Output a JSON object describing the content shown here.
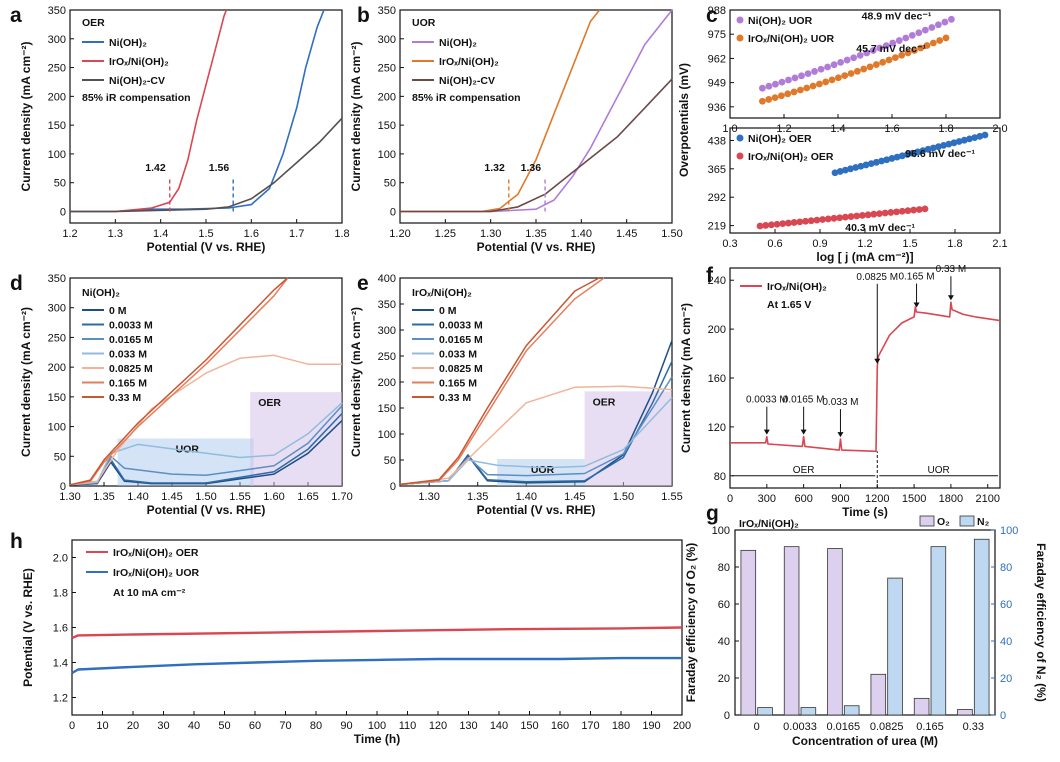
{
  "figure_size": "1060x762",
  "panel_labels": [
    "a",
    "b",
    "c",
    "d",
    "e",
    "f",
    "g",
    "h"
  ],
  "chart_data": [
    {
      "panel": "a",
      "type": "line",
      "xlabel": "Potential (V vs. RHE)",
      "ylabel": "Current density (mA cm⁻²)",
      "xlim": [
        1.2,
        1.8
      ],
      "ylim": [
        -20,
        350
      ],
      "xticks": [
        "1.2",
        "1.3",
        "1.4",
        "1.5",
        "1.6",
        "1.7",
        "1.8"
      ],
      "yticks": [
        "0",
        "50",
        "100",
        "150",
        "200",
        "250",
        "300",
        "350"
      ],
      "header": "OER",
      "note": "85% iR compensation",
      "markers": [
        {
          "x": 1.42,
          "label": "1.42",
          "color": "#d94752"
        },
        {
          "x": 1.56,
          "label": "1.56",
          "color": "#2f6fbf"
        }
      ],
      "series": [
        {
          "name": "Ni(OH)₂",
          "color": "#2f6fbf",
          "x": [
            1.2,
            1.3,
            1.38,
            1.45,
            1.55,
            1.6,
            1.64,
            1.67,
            1.7,
            1.72,
            1.745,
            1.76
          ],
          "y": [
            0,
            0,
            4,
            4,
            6,
            12,
            40,
            100,
            180,
            250,
            320,
            350
          ]
        },
        {
          "name": "IrOₓ/Ni(OH)₂",
          "color": "#d94752",
          "x": [
            1.2,
            1.3,
            1.38,
            1.42,
            1.44,
            1.46,
            1.48,
            1.5,
            1.52,
            1.54,
            1.545
          ],
          "y": [
            0,
            0,
            6,
            16,
            40,
            90,
            160,
            220,
            280,
            340,
            350
          ]
        },
        {
          "name": "Ni(OH)₂-CV",
          "color": "#55504e",
          "x": [
            1.2,
            1.3,
            1.4,
            1.5,
            1.55,
            1.6,
            1.65,
            1.7,
            1.75,
            1.8
          ],
          "y": [
            0,
            0,
            2,
            4,
            8,
            22,
            50,
            85,
            120,
            162
          ]
        }
      ]
    },
    {
      "panel": "b",
      "type": "line",
      "xlabel": "Potential (V vs. RHE)",
      "ylabel": "Current density (mA cm⁻²)",
      "xlim": [
        1.2,
        1.5
      ],
      "ylim": [
        -20,
        350
      ],
      "xticks": [
        "1.20",
        "1.25",
        "1.30",
        "1.35",
        "1.40",
        "1.45",
        "1.50"
      ],
      "yticks": [
        "0",
        "50",
        "100",
        "150",
        "200",
        "250",
        "300",
        "350"
      ],
      "header": "UOR",
      "note": "85% iR compensation",
      "markers": [
        {
          "x": 1.32,
          "label": "1.32",
          "color": "#e0792a"
        },
        {
          "x": 1.36,
          "label": "1.36",
          "color": "#b07cd8"
        }
      ],
      "series": [
        {
          "name": "Ni(OH)₂",
          "color": "#b07cd8",
          "x": [
            1.2,
            1.3,
            1.35,
            1.37,
            1.39,
            1.41,
            1.43,
            1.45,
            1.47,
            1.5
          ],
          "y": [
            0,
            0,
            4,
            20,
            60,
            110,
            170,
            230,
            290,
            350
          ]
        },
        {
          "name": "IrOₓ/Ni(OH)₂",
          "color": "#e0792a",
          "x": [
            1.2,
            1.29,
            1.31,
            1.33,
            1.35,
            1.37,
            1.39,
            1.41,
            1.42
          ],
          "y": [
            0,
            0,
            5,
            30,
            90,
            170,
            250,
            330,
            350
          ]
        },
        {
          "name": "Ni(OH)₂-CV",
          "color": "#6b4a45",
          "x": [
            1.2,
            1.3,
            1.33,
            1.36,
            1.4,
            1.44,
            1.47,
            1.5
          ],
          "y": [
            0,
            0,
            8,
            30,
            80,
            130,
            180,
            230
          ]
        }
      ]
    },
    {
      "panel": "c-top",
      "type": "scatter",
      "ylabel": "Overpotentials (mV)",
      "xlim": [
        1.0,
        2.0
      ],
      "ylim": [
        930,
        988
      ],
      "xticks": [
        "1.0",
        "1.2",
        "1.4",
        "1.6",
        "1.8",
        "2.0"
      ],
      "yticks": [
        "936",
        "949",
        "962",
        "975",
        "988"
      ],
      "series": [
        {
          "name": "Ni(OH)₂ UOR",
          "color": "#b07cd8",
          "slope_label": "48.9 mV dec⁻¹",
          "x": [
            1.12,
            1.82
          ],
          "y": [
            946,
            983
          ]
        },
        {
          "name": "IrOₓ/Ni(OH)₂ UOR",
          "color": "#e0792a",
          "slope_label": "45.7 mV dec⁻¹",
          "x": [
            1.12,
            1.8
          ],
          "y": [
            939,
            973
          ]
        }
      ]
    },
    {
      "panel": "c-bottom",
      "type": "scatter",
      "xlabel": "log [ j (mA cm⁻²)]",
      "ylabel": "Overpotentials (mV)",
      "xlim": [
        0.3,
        2.1
      ],
      "ylim": [
        200,
        470
      ],
      "xticks": [
        "0.3",
        "0.6",
        "0.9",
        "1.2",
        "1.5",
        "1.8",
        "2.1"
      ],
      "yticks": [
        "219",
        "292",
        "365",
        "438"
      ],
      "series": [
        {
          "name": "Ni(OH)₂ OER",
          "color": "#2f6fbf",
          "slope_label": "96.6 mV dec⁻¹",
          "x": [
            1.0,
            2.0
          ],
          "y": [
            355,
            452
          ]
        },
        {
          "name": "IrOₓ/Ni(OH)₂ OER",
          "color": "#d94752",
          "slope_label": "40.3 mV dec⁻¹",
          "x": [
            0.5,
            1.6
          ],
          "y": [
            218,
            262
          ]
        }
      ]
    },
    {
      "panel": "d",
      "type": "line",
      "xlabel": "Potential (V vs. RHE)",
      "ylabel": "Current density (mA cm⁻²)",
      "xlim": [
        1.3,
        1.7
      ],
      "ylim": [
        0,
        350
      ],
      "xticks": [
        "1.30",
        "1.35",
        "1.40",
        "1.45",
        "1.50",
        "1.55",
        "1.60",
        "1.65",
        "1.70"
      ],
      "yticks": [
        "0",
        "50",
        "100",
        "150",
        "200",
        "250",
        "300",
        "350"
      ],
      "header": "Ni(OH)₂",
      "regions": [
        {
          "label": "UOR",
          "x0": 1.37,
          "x1": 1.57,
          "y1": 80
        },
        {
          "label": "OER",
          "x0": 1.565,
          "x1": 1.7,
          "y1": 158
        }
      ],
      "series": [
        {
          "name": "0 M",
          "color": "#1d4f86",
          "x": [
            1.3,
            1.34,
            1.36,
            1.38,
            1.42,
            1.5,
            1.6,
            1.65,
            1.7
          ],
          "y": [
            2,
            4,
            40,
            8,
            4,
            4,
            20,
            55,
            110
          ]
        },
        {
          "name": "0.0033 M",
          "color": "#2c6aa8",
          "x": [
            1.3,
            1.34,
            1.36,
            1.38,
            1.42,
            1.5,
            1.6,
            1.65,
            1.7
          ],
          "y": [
            2,
            4,
            45,
            10,
            5,
            5,
            24,
            62,
            122
          ]
        },
        {
          "name": "0.0165 M",
          "color": "#5a8fc4",
          "x": [
            1.3,
            1.34,
            1.36,
            1.38,
            1.45,
            1.5,
            1.6,
            1.65,
            1.7
          ],
          "y": [
            2,
            6,
            50,
            30,
            20,
            18,
            34,
            72,
            135
          ]
        },
        {
          "name": "0.033 M",
          "color": "#93bbdc",
          "x": [
            1.3,
            1.34,
            1.36,
            1.4,
            1.48,
            1.55,
            1.6,
            1.65,
            1.7
          ],
          "y": [
            2,
            6,
            55,
            70,
            58,
            48,
            52,
            88,
            140
          ]
        },
        {
          "name": "0.0825 M",
          "color": "#f0b49a",
          "x": [
            1.3,
            1.34,
            1.37,
            1.42,
            1.5,
            1.55,
            1.6,
            1.65,
            1.7
          ],
          "y": [
            2,
            8,
            60,
            130,
            190,
            215,
            220,
            205,
            205
          ]
        },
        {
          "name": "0.165 M",
          "color": "#e67e5c",
          "x": [
            1.3,
            1.33,
            1.35,
            1.4,
            1.5,
            1.6,
            1.62
          ],
          "y": [
            2,
            8,
            40,
            100,
            205,
            320,
            350
          ]
        },
        {
          "name": "0.33 M",
          "color": "#c9562f",
          "x": [
            1.3,
            1.33,
            1.35,
            1.4,
            1.5,
            1.6,
            1.62
          ],
          "y": [
            2,
            10,
            44,
            106,
            212,
            330,
            350
          ]
        }
      ]
    },
    {
      "panel": "e",
      "type": "line",
      "xlabel": "Potential (V vs. RHE)",
      "ylabel": "Current density (mA cm⁻²)",
      "xlim": [
        1.27,
        1.55
      ],
      "ylim": [
        0,
        400
      ],
      "xticks": [
        "1.30",
        "1.35",
        "1.40",
        "1.45",
        "1.50",
        "1.55"
      ],
      "yticks": [
        "0",
        "50",
        "100",
        "150",
        "200",
        "250",
        "300",
        "350",
        "400"
      ],
      "header": "IrOₓ/Ni(OH)₂",
      "regions": [
        {
          "label": "UOR",
          "x0": 1.37,
          "x1": 1.46,
          "y1": 52
        },
        {
          "label": "OER",
          "x0": 1.46,
          "x1": 1.55,
          "y1": 182
        }
      ],
      "series": [
        {
          "name": "0 M",
          "color": "#1d4f86",
          "x": [
            1.27,
            1.32,
            1.34,
            1.36,
            1.4,
            1.46,
            1.5,
            1.53,
            1.55
          ],
          "y": [
            3,
            10,
            58,
            10,
            6,
            8,
            60,
            180,
            280
          ]
        },
        {
          "name": "0.0033 M",
          "color": "#2c6aa8",
          "x": [
            1.27,
            1.32,
            1.34,
            1.36,
            1.4,
            1.46,
            1.5,
            1.53,
            1.55
          ],
          "y": [
            3,
            10,
            60,
            12,
            8,
            10,
            55,
            160,
            240
          ]
        },
        {
          "name": "0.0165 M",
          "color": "#5a8fc4",
          "x": [
            1.27,
            1.32,
            1.34,
            1.36,
            1.4,
            1.46,
            1.5,
            1.53,
            1.55
          ],
          "y": [
            3,
            10,
            55,
            22,
            20,
            24,
            62,
            150,
            210
          ]
        },
        {
          "name": "0.033 M",
          "color": "#93bbdc",
          "x": [
            1.27,
            1.32,
            1.34,
            1.37,
            1.42,
            1.46,
            1.5,
            1.53,
            1.55
          ],
          "y": [
            3,
            10,
            50,
            40,
            35,
            38,
            70,
            130,
            170
          ]
        },
        {
          "name": "0.0825 M",
          "color": "#f0b49a",
          "x": [
            1.27,
            1.32,
            1.35,
            1.4,
            1.45,
            1.5,
            1.55
          ],
          "y": [
            3,
            15,
            70,
            160,
            190,
            192,
            185
          ]
        },
        {
          "name": "0.165 M",
          "color": "#e67e5c",
          "x": [
            1.27,
            1.31,
            1.33,
            1.36,
            1.4,
            1.45,
            1.48
          ],
          "y": [
            3,
            10,
            50,
            140,
            260,
            360,
            400
          ]
        },
        {
          "name": "0.33 M",
          "color": "#c9562f",
          "x": [
            1.27,
            1.31,
            1.33,
            1.36,
            1.4,
            1.45,
            1.475
          ],
          "y": [
            3,
            12,
            55,
            150,
            270,
            375,
            400
          ]
        }
      ]
    },
    {
      "panel": "f",
      "type": "line",
      "xlabel": "Time (s)",
      "ylabel": "Current density (mA cm⁻²)",
      "xlim": [
        0,
        2200
      ],
      "ylim": [
        70,
        250
      ],
      "xticks": [
        "0",
        "300",
        "600",
        "900",
        "1200",
        "1500",
        "1800",
        "2100"
      ],
      "yticks": [
        "80",
        "120",
        "160",
        "200",
        "240"
      ],
      "series": [
        {
          "name": "IrOₓ/Ni(OH)₂",
          "color": "#d94752",
          "x": [
            0,
            290,
            300,
            310,
            590,
            600,
            610,
            890,
            900,
            910,
            1190,
            1200,
            1210,
            1300,
            1400,
            1500,
            1510,
            1520,
            1600,
            1790,
            1800,
            1810,
            1900,
            2000,
            2200
          ],
          "y": [
            107,
            107,
            112,
            106,
            104,
            112,
            104,
            101,
            110,
            101,
            100,
            170,
            178,
            195,
            205,
            210,
            218,
            214,
            213,
            210,
            222,
            216,
            212,
            210,
            207
          ]
        }
      ],
      "annotations": [
        "0.0033 M",
        "0.0165 M",
        "0.033 M",
        "0.0825 M",
        "0.165 M",
        "0.33 M"
      ],
      "subtitle": "At 1.65 V",
      "regions": [
        "OER",
        "UOR"
      ]
    },
    {
      "panel": "g",
      "type": "bar",
      "xlabel": "Concentration of urea (M)",
      "ylabel": "Faraday efficiency of O₂ (%)",
      "ylabel_right": "Faraday efficiency of N₂ (%)",
      "ylim": [
        0,
        100
      ],
      "yticks": [
        "0",
        "20",
        "40",
        "60",
        "80",
        "100"
      ],
      "categories": [
        "0",
        "0.0033",
        "0.0165",
        "0.0825",
        "0.165",
        "0.33"
      ],
      "title": "IrOₓ/Ni(OH)₂",
      "series": [
        {
          "name": "O₂",
          "color": "#ddd0ee",
          "values": [
            89,
            91,
            90,
            22,
            9,
            3
          ]
        },
        {
          "name": "N₂",
          "color": "#bfd8f2",
          "values": [
            4,
            4,
            5,
            74,
            91,
            95
          ]
        }
      ]
    },
    {
      "panel": "h",
      "type": "line",
      "xlabel": "Time (h)",
      "ylabel": "Potential (V vs. RHE)",
      "xlim": [
        0,
        200
      ],
      "ylim": [
        1.1,
        2.1
      ],
      "xticks": [
        "0",
        "10",
        "20",
        "30",
        "40",
        "50",
        "60",
        "70",
        "80",
        "90",
        "100",
        "110",
        "120",
        "130",
        "140",
        "150",
        "160",
        "170",
        "180",
        "190",
        "200"
      ],
      "yticks": [
        "1.2",
        "1.4",
        "1.6",
        "1.8",
        "2.0"
      ],
      "subtitle": "At 10 mA cm⁻²",
      "series": [
        {
          "name": "IrOₓ/Ni(OH)₂ OER",
          "color": "#d94752",
          "x": [
            0,
            2,
            20,
            60,
            100,
            140,
            180,
            200
          ],
          "y": [
            1.54,
            1.555,
            1.56,
            1.57,
            1.58,
            1.59,
            1.595,
            1.6
          ]
        },
        {
          "name": "IrOₓ/Ni(OH)₂ UOR",
          "color": "#2f6fbf",
          "x": [
            0,
            2,
            20,
            40,
            60,
            80,
            100,
            120,
            140,
            160,
            180,
            200
          ],
          "y": [
            1.34,
            1.36,
            1.375,
            1.39,
            1.4,
            1.41,
            1.415,
            1.42,
            1.42,
            1.42,
            1.425,
            1.425
          ]
        }
      ]
    }
  ]
}
